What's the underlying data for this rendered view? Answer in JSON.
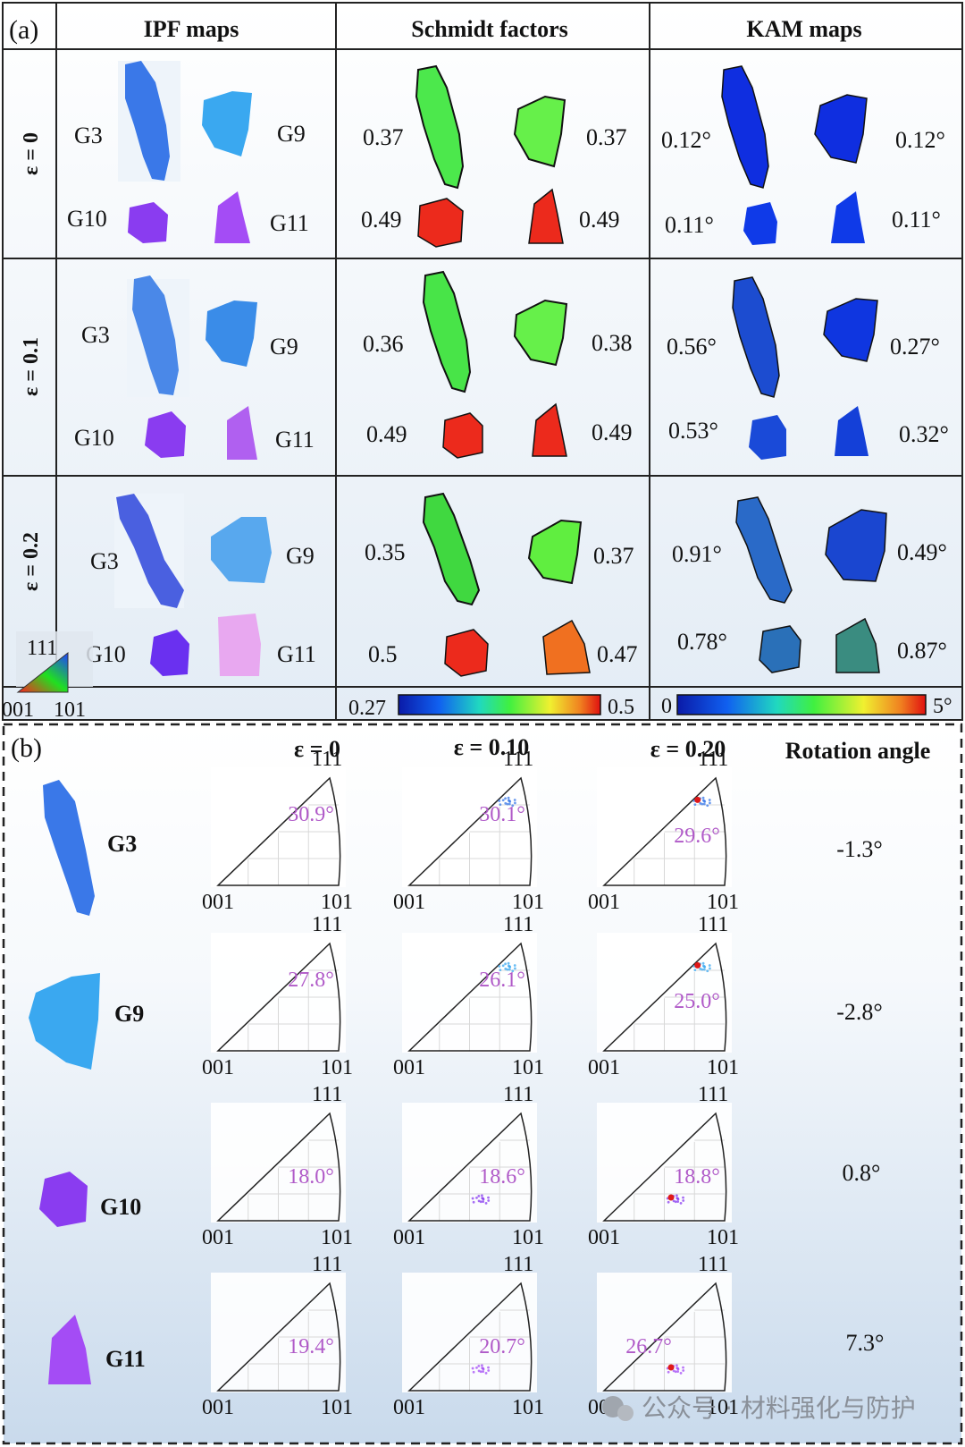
{
  "panel_a": {
    "label": "(a)",
    "columns": [
      "IPF maps",
      "Schmidt factors",
      "KAM maps"
    ],
    "rows": [
      {
        "strain": "ε = 0",
        "ipf": [
          "G3",
          "G9",
          "G10",
          "G11"
        ],
        "schmidt": [
          "0.37",
          "0.37",
          "0.49",
          "0.49"
        ],
        "kam": [
          "0.12°",
          "0.12°",
          "0.11°",
          "0.11°"
        ]
      },
      {
        "strain": "ε = 0.1",
        "ipf": [
          "G3",
          "G9",
          "G10",
          "G11"
        ],
        "schmidt": [
          "0.36",
          "0.38",
          "0.49",
          "0.49"
        ],
        "kam": [
          "0.56°",
          "0.27°",
          "0.53°",
          "0.32°"
        ]
      },
      {
        "strain": "ε = 0.2",
        "ipf": [
          "G3",
          "G9",
          "G10",
          "G11"
        ],
        "schmidt": [
          "0.35",
          "0.37",
          "0.5",
          "0.47"
        ],
        "kam": [
          "0.91°",
          "0.49°",
          "0.78°",
          "0.87°"
        ]
      }
    ],
    "ipf_key": {
      "top": "111",
      "left": "001",
      "right": "101"
    },
    "schmidt_scale": {
      "min": "0.27",
      "max": "0.5"
    },
    "kam_scale": {
      "min": "0",
      "max": "5°"
    }
  },
  "panel_b": {
    "label": "(b)",
    "columns": [
      "ε = 0",
      "ε = 0.10",
      "ε = 0.20",
      "Rotation angle"
    ],
    "triangle_labels": {
      "top": "111",
      "left": "001",
      "right": "101"
    },
    "grains": [
      {
        "name": "G3",
        "angles": [
          "30.9°",
          "30.1°",
          "29.6°"
        ],
        "rotation": "-1.3°",
        "color": "#3a78e8"
      },
      {
        "name": "G9",
        "angles": [
          "27.8°",
          "26.1°",
          "25.0°"
        ],
        "rotation": "-2.8°",
        "color": "#3aa8f0"
      },
      {
        "name": "G10",
        "angles": [
          "18.0°",
          "18.6°",
          "18.8°"
        ],
        "rotation": "0.8°",
        "color": "#8a3cf0"
      },
      {
        "name": "G11",
        "angles": [
          "19.4°",
          "20.7°",
          "26.7°"
        ],
        "rotation": "7.3°",
        "color": "#a44cf5"
      }
    ]
  },
  "watermark": "公众号 · 材料强化与防护"
}
